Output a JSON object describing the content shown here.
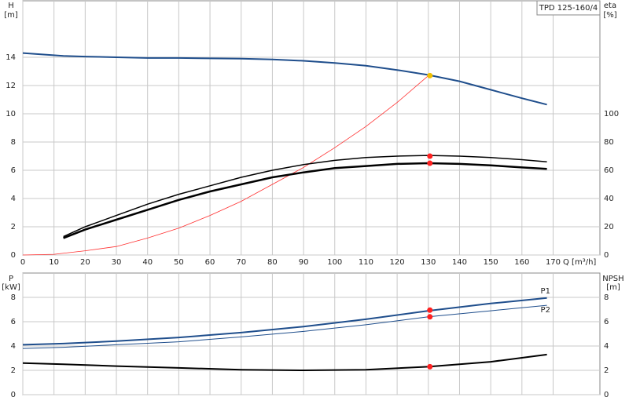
{
  "chart_data": [
    {
      "type": "line",
      "title": "TPD 125-160/4",
      "xlabel": "Q [m³/h]",
      "ylabel": "H",
      "ylabel_unit": "[m]",
      "y2label": "eta",
      "y2label_unit": "[%]",
      "xlim": [
        0,
        185
      ],
      "xticks": [
        0,
        10,
        20,
        30,
        40,
        50,
        60,
        70,
        80,
        90,
        100,
        110,
        120,
        130,
        140,
        150,
        160,
        170
      ],
      "ylim": [
        0,
        18
      ],
      "yticks": [
        0,
        2,
        4,
        6,
        8,
        10,
        12,
        14
      ],
      "y2lim": [
        0,
        180
      ],
      "y2ticks": [
        0,
        20,
        40,
        60,
        80,
        100
      ],
      "grid": true,
      "series": [
        {
          "color": "#1f4e8c",
          "width": 2,
          "x": [
            0,
            13,
            20,
            30,
            40,
            50,
            60,
            70,
            80,
            90,
            100,
            110,
            120,
            130,
            140,
            150,
            160,
            168
          ],
          "values": [
            14.3,
            14.1,
            14.05,
            14.0,
            13.95,
            13.95,
            13.92,
            13.9,
            13.85,
            13.75,
            13.6,
            13.4,
            13.1,
            12.75,
            12.3,
            11.7,
            11.1,
            10.65
          ]
        },
        {
          "color": "#ff3030",
          "width": 0.8,
          "x": [
            0,
            10,
            20,
            30,
            40,
            50,
            60,
            70,
            80,
            90,
            100,
            110,
            120,
            130
          ],
          "values": [
            0,
            0.05,
            0.3,
            0.6,
            1.2,
            1.9,
            2.8,
            3.8,
            5.0,
            6.2,
            7.6,
            9.1,
            10.8,
            12.7
          ]
        },
        {
          "color": "#000000",
          "width": 1.5,
          "axis": "y2",
          "x": [
            13,
            20,
            30,
            40,
            50,
            60,
            70,
            80,
            90,
            100,
            110,
            120,
            130,
            140,
            150,
            160,
            168
          ],
          "values": [
            13,
            20,
            28,
            36,
            43,
            49,
            55,
            60,
            64,
            67,
            69,
            70,
            70.5,
            70,
            69,
            67.5,
            66
          ]
        },
        {
          "color": "#000000",
          "width": 2.5,
          "axis": "y2",
          "x": [
            13,
            20,
            30,
            40,
            50,
            60,
            70,
            80,
            90,
            100,
            110,
            120,
            130,
            140,
            150,
            160,
            168
          ],
          "values": [
            12,
            18,
            25,
            32,
            39,
            45,
            50,
            55,
            58.5,
            61.5,
            63,
            64.5,
            65,
            64.5,
            63.5,
            62,
            61
          ]
        }
      ],
      "points": [
        {
          "x": 130.5,
          "y": 12.7,
          "color": "#f0c000"
        },
        {
          "x": 130.5,
          "y": 70,
          "color": "#ff2020",
          "axis": "y2"
        },
        {
          "x": 130.5,
          "y": 65,
          "color": "#ff2020",
          "axis": "y2"
        }
      ]
    },
    {
      "type": "line",
      "ylabel": "P",
      "ylabel_unit": "[kW]",
      "y2label": "NPSH",
      "y2label_unit": "[m]",
      "xlim": [
        0,
        185
      ],
      "ylim": [
        0,
        10
      ],
      "yticks": [
        0,
        2,
        4,
        6,
        8
      ],
      "y2lim": [
        0,
        10
      ],
      "y2ticks": [
        0,
        2,
        4,
        6,
        8
      ],
      "grid": true,
      "series": [
        {
          "name": "P1",
          "color": "#1f4e8c",
          "width": 2,
          "x": [
            0,
            13,
            30,
            50,
            70,
            90,
            110,
            130,
            150,
            168
          ],
          "values": [
            4.1,
            4.2,
            4.4,
            4.7,
            5.1,
            5.6,
            6.2,
            6.9,
            7.5,
            7.95
          ]
        },
        {
          "name": "P2",
          "color": "#1f4e8c",
          "width": 1,
          "x": [
            0,
            13,
            30,
            50,
            70,
            90,
            110,
            130,
            150,
            168
          ],
          "values": [
            3.8,
            3.9,
            4.1,
            4.35,
            4.75,
            5.2,
            5.75,
            6.4,
            6.9,
            7.35
          ]
        },
        {
          "color": "#000000",
          "width": 2,
          "axis": "y2",
          "x": [
            0,
            13,
            30,
            50,
            70,
            90,
            110,
            130,
            150,
            168
          ],
          "values": [
            2.6,
            2.5,
            2.35,
            2.2,
            2.05,
            2.0,
            2.05,
            2.3,
            2.7,
            3.3
          ]
        }
      ],
      "points": [
        {
          "x": 130.5,
          "y": 6.95,
          "color": "#ff2020"
        },
        {
          "x": 130.5,
          "y": 6.4,
          "color": "#ff2020"
        },
        {
          "x": 130.5,
          "y": 2.3,
          "color": "#ff2020",
          "axis": "y2"
        }
      ]
    }
  ]
}
